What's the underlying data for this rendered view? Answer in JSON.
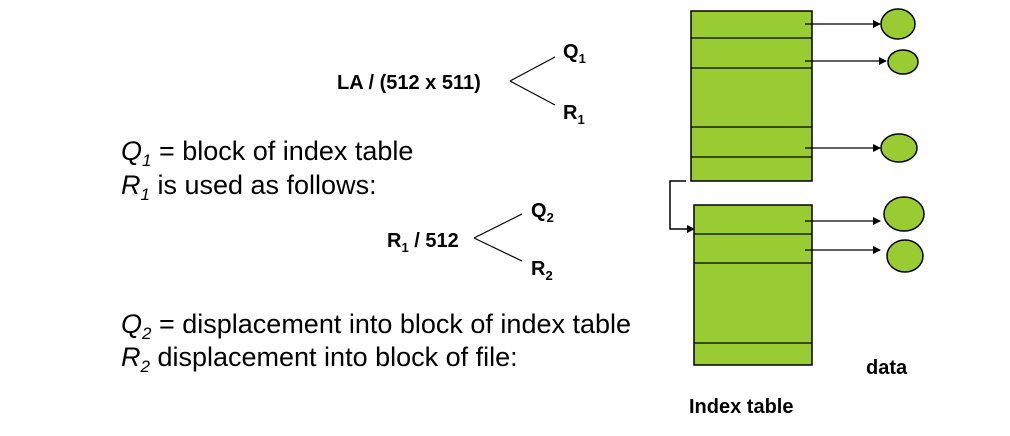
{
  "formula1": {
    "expr": "LA / (512 x 511)",
    "q_base": "Q",
    "q_sub": "1",
    "r_base": "R",
    "r_sub": "1"
  },
  "formula2": {
    "expr_base": "R",
    "expr_sub": "1",
    "expr_rest": " / 512",
    "q_base": "Q",
    "q_sub": "2",
    "r_base": "R",
    "r_sub": "2"
  },
  "lines": {
    "q1_var": "Q",
    "q1_sub": "1",
    "q1_text": " = block of index table",
    "r1_var": "R",
    "r1_sub": "1",
    "r1_text": " is used as follows:",
    "q2_var": "Q",
    "q2_sub": "2",
    "q2_text": " = displacement into block of index table",
    "r2_var": "R",
    "r2_sub": "2",
    "r2_text": " displacement into block of file:"
  },
  "captions": {
    "data": "data",
    "index_table": "Index table"
  },
  "colors": {
    "block_fill": "#99cc33",
    "stroke": "#000000"
  }
}
